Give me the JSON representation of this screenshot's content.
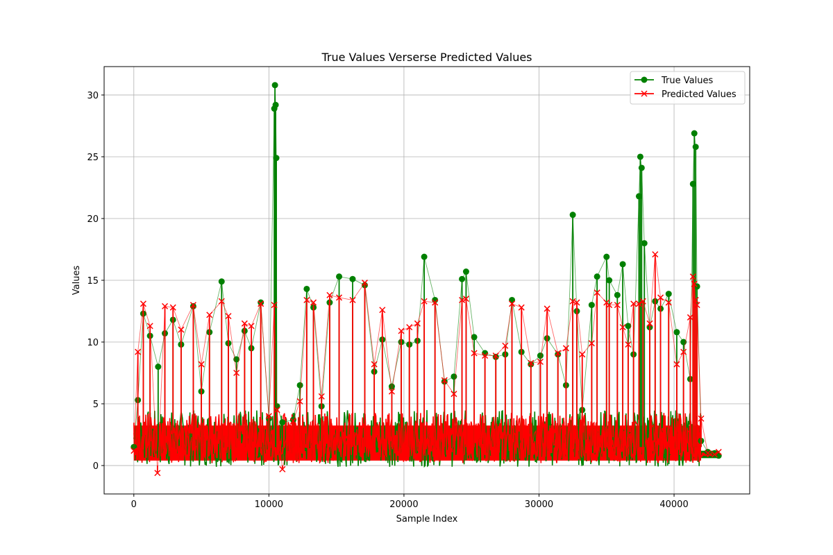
{
  "chart_data": {
    "type": "line",
    "title": "True Values Verserse Predicted Values",
    "xlabel": "Sample Index",
    "ylabel": "Values",
    "xlim": [
      -2200,
      45600
    ],
    "ylim": [
      -2.3,
      32.3
    ],
    "xticks": [
      0,
      10000,
      20000,
      30000,
      40000
    ],
    "yticks": [
      0,
      5,
      10,
      15,
      20,
      25,
      30
    ],
    "grid": true,
    "legend_position": "top-right",
    "series": [
      {
        "name": "True Values",
        "color": "#008000",
        "marker": "circle",
        "x": [
          0,
          300,
          700,
          1200,
          1800,
          2300,
          2900,
          3500,
          4400,
          5000,
          5600,
          6500,
          7000,
          7600,
          8200,
          8700,
          9400,
          10000,
          10400,
          10450,
          10500,
          10550,
          10600,
          11000,
          11800,
          12300,
          12800,
          13300,
          13900,
          14500,
          15200,
          16200,
          17100,
          17800,
          18400,
          19100,
          19800,
          20400,
          21000,
          21500,
          22300,
          23000,
          23700,
          24300,
          24600,
          25200,
          26000,
          26800,
          27500,
          28000,
          28700,
          29400,
          30100,
          30600,
          31400,
          32000,
          32500,
          32800,
          33200,
          33900,
          34300,
          35000,
          35200,
          35800,
          36200,
          36600,
          37000,
          37400,
          37500,
          37600,
          37800,
          38200,
          38600,
          39000,
          39600,
          40200,
          40700,
          41200,
          41400,
          41500,
          41600,
          41700,
          42000,
          42500,
          43000,
          43300
        ],
        "values": [
          1.5,
          5.3,
          12.3,
          10.5,
          8.0,
          10.7,
          11.8,
          9.8,
          12.9,
          6.0,
          10.8,
          14.9,
          9.9,
          8.6,
          10.9,
          9.5,
          13.2,
          3.8,
          28.9,
          30.8,
          29.2,
          24.9,
          4.8,
          3.5,
          3.7,
          6.5,
          14.3,
          12.8,
          4.8,
          13.2,
          15.3,
          15.1,
          14.6,
          7.6,
          10.2,
          6.4,
          10.0,
          9.8,
          10.1,
          16.9,
          13.4,
          6.8,
          7.2,
          15.1,
          15.7,
          10.4,
          9.1,
          8.8,
          9.0,
          13.4,
          9.2,
          8.2,
          8.9,
          10.3,
          9.0,
          6.5,
          20.3,
          12.5,
          4.5,
          13.0,
          15.3,
          16.9,
          15.0,
          13.8,
          16.3,
          11.3,
          9.0,
          21.8,
          25.0,
          24.1,
          18.0,
          11.2,
          13.3,
          12.7,
          13.9,
          10.8,
          10.0,
          7.0,
          22.8,
          26.9,
          25.8,
          14.5,
          2.0,
          1.1,
          1.0,
          0.8
        ]
      },
      {
        "name": "Predicted Values",
        "color": "#ff0000",
        "marker": "x",
        "x": [
          0,
          300,
          700,
          1200,
          1750,
          2300,
          2900,
          3500,
          4400,
          5000,
          5600,
          6500,
          7000,
          7600,
          8200,
          8700,
          9400,
          10000,
          10400,
          10600,
          11000,
          11800,
          12300,
          12800,
          13300,
          13900,
          14500,
          15200,
          16200,
          17100,
          17800,
          18400,
          19100,
          19800,
          20400,
          21000,
          21500,
          22300,
          23000,
          23700,
          24300,
          24600,
          25200,
          26000,
          26800,
          27500,
          28000,
          28700,
          29400,
          30100,
          30600,
          31400,
          32000,
          32500,
          32800,
          33200,
          33900,
          34300,
          35000,
          35200,
          35800,
          36200,
          36600,
          37000,
          37400,
          37700,
          38200,
          38600,
          39000,
          39600,
          40200,
          40700,
          41200,
          41400,
          41500,
          41600,
          41700,
          42000,
          42500,
          43000,
          43300
        ],
        "values": [
          1.2,
          9.2,
          13.1,
          11.3,
          -0.6,
          12.9,
          12.8,
          11.0,
          13.0,
          8.2,
          12.2,
          13.3,
          12.1,
          7.5,
          11.5,
          11.3,
          13.1,
          4.0,
          13.0,
          4.5,
          -0.3,
          3.6,
          5.2,
          13.4,
          13.2,
          5.6,
          13.8,
          13.6,
          13.4,
          14.8,
          8.2,
          12.6,
          6.0,
          10.9,
          11.2,
          11.5,
          13.3,
          13.2,
          6.9,
          5.8,
          13.4,
          13.5,
          9.1,
          8.9,
          8.9,
          9.7,
          13.1,
          12.8,
          8.3,
          8.4,
          12.7,
          9.1,
          9.5,
          13.3,
          13.2,
          9.0,
          9.9,
          14.0,
          13.2,
          13.0,
          13.0,
          11.2,
          9.8,
          13.1,
          13.1,
          13.3,
          11.5,
          17.1,
          13.6,
          13.2,
          8.2,
          9.2,
          12.0,
          15.3,
          14.7,
          13.4,
          13.0,
          3.8,
          1.0,
          0.9,
          1.1
        ]
      }
    ],
    "noise_band": {
      "color_true": "#008000",
      "color_pred": "#ff0000",
      "x_start": 0,
      "x_end": 42000,
      "low": 0,
      "high": 4.5,
      "tail_x_start": 42000,
      "tail_x_end": 43300,
      "tail_low": 0.6,
      "tail_high": 1.2
    }
  }
}
